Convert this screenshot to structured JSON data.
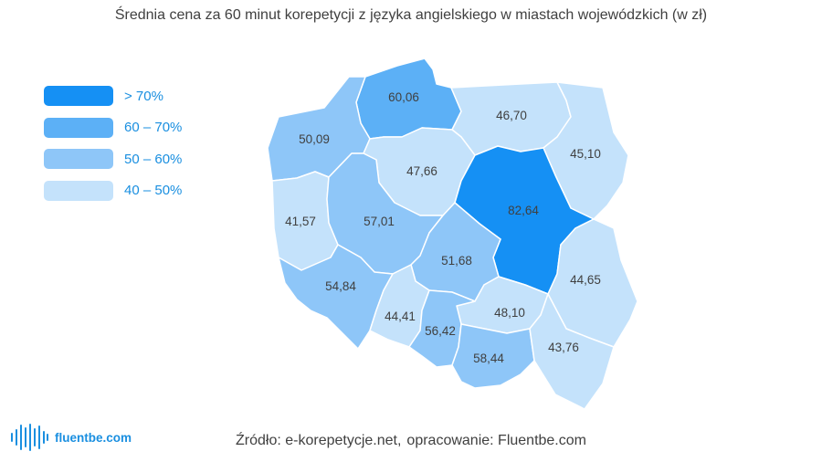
{
  "title": "Średnia cena za 60 minut korepetycji z języka angielskiego w miastach wojewódzkich (w zł)",
  "colors": {
    "over_70": "#1590f4",
    "60_70": "#5cb0f6",
    "50_60": "#8ec6f8",
    "40_50": "#c4e2fb",
    "border": "#ffffff",
    "legend_text": "#1a8fe0",
    "text": "#404040"
  },
  "legend": [
    {
      "label": "> 70%",
      "color": "#1590f4"
    },
    {
      "label": "60 – 70%",
      "color": "#5cb0f6"
    },
    {
      "label": "50 – 60%",
      "color": "#8ec6f8"
    },
    {
      "label": "40 – 50%",
      "color": "#c4e2fb"
    }
  ],
  "regions": [
    {
      "id": "pomorskie",
      "value": "60,06",
      "color": "#5cb0f6"
    },
    {
      "id": "warminsko-mazurskie",
      "value": "46,70",
      "color": "#c4e2fb"
    },
    {
      "id": "podlaskie",
      "value": "45,10",
      "color": "#c4e2fb"
    },
    {
      "id": "zachodniopomorskie",
      "value": "50,09",
      "color": "#8ec6f8"
    },
    {
      "id": "kujawsko-pomorskie",
      "value": "47,66",
      "color": "#c4e2fb"
    },
    {
      "id": "mazowieckie",
      "value": "82,64",
      "color": "#1590f4"
    },
    {
      "id": "lubuskie",
      "value": "41,57",
      "color": "#c4e2fb"
    },
    {
      "id": "wielkopolskie",
      "value": "57,01",
      "color": "#8ec6f8"
    },
    {
      "id": "lodzkie",
      "value": "51,68",
      "color": "#8ec6f8"
    },
    {
      "id": "lubelskie",
      "value": "44,65",
      "color": "#c4e2fb"
    },
    {
      "id": "dolnoslaskie",
      "value": "54,84",
      "color": "#8ec6f8"
    },
    {
      "id": "opolskie",
      "value": "44,41",
      "color": "#c4e2fb"
    },
    {
      "id": "swietokrzyskie",
      "value": "48,10",
      "color": "#c4e2fb"
    },
    {
      "id": "slaskie",
      "value": "56,42",
      "color": "#8ec6f8"
    },
    {
      "id": "malopolskie",
      "value": "58,44",
      "color": "#8ec6f8"
    },
    {
      "id": "podkarpackie",
      "value": "43,76",
      "color": "#c4e2fb"
    }
  ],
  "source": {
    "part1": "Źródło: e-korepetycje.net,",
    "part2": "opracowanie: Fluentbe.com"
  },
  "brand": {
    "name": "fluentbe.com",
    "icon": "waveform-logo-icon"
  }
}
